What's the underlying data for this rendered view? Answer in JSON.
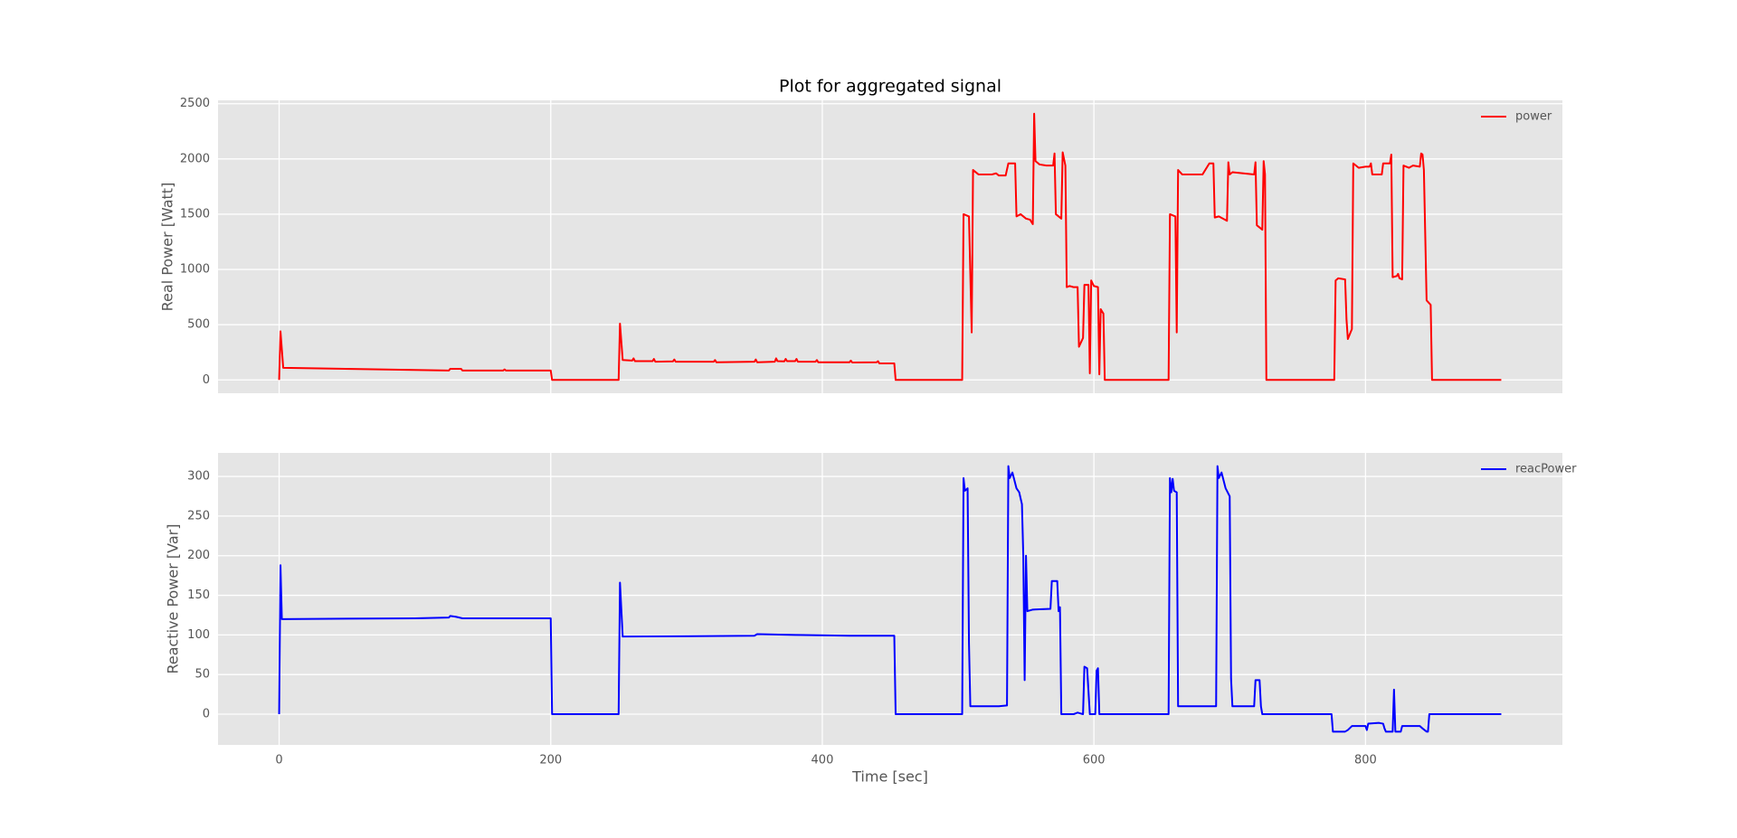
{
  "chart_data": [
    {
      "type": "line",
      "title": "Plot for aggregated signal",
      "y_label": "Real Power [Watt]",
      "x": [
        0,
        1,
        3,
        125,
        126,
        134,
        135,
        165,
        166,
        167,
        200,
        201,
        250,
        251,
        253,
        260,
        261,
        262,
        275,
        276,
        277,
        290,
        291,
        292,
        320,
        321,
        322,
        350,
        351,
        352,
        365,
        366,
        367,
        372,
        373,
        374,
        380,
        381,
        382,
        395,
        396,
        397,
        420,
        421,
        422,
        440,
        441,
        442,
        453,
        454,
        503,
        504,
        508,
        510,
        511,
        515,
        525,
        528,
        530,
        535,
        537,
        542,
        543,
        546,
        550,
        553,
        555,
        556,
        557,
        560,
        565,
        570,
        571,
        572,
        576,
        577,
        579,
        580,
        582,
        585,
        588,
        589,
        592,
        593,
        596,
        597,
        598,
        600,
        603,
        604,
        605,
        607,
        608,
        655,
        656,
        660,
        661,
        662,
        665,
        680,
        685,
        688,
        689,
        692,
        698,
        699,
        700,
        702,
        718,
        719,
        720,
        724,
        725,
        726,
        727,
        777,
        778,
        780,
        785,
        786,
        787,
        790,
        791,
        795,
        800,
        803,
        804,
        805,
        812,
        813,
        818,
        819,
        820,
        823,
        824,
        825,
        827,
        828,
        832,
        835,
        840,
        841,
        842,
        843,
        845,
        848,
        849,
        900
      ],
      "series": [
        {
          "name": "power",
          "color": "#ff0000",
          "values": [
            0,
            440,
            110,
            85,
            100,
            100,
            85,
            85,
            95,
            85,
            85,
            0,
            0,
            510,
            180,
            175,
            195,
            170,
            170,
            190,
            165,
            168,
            185,
            165,
            165,
            180,
            160,
            165,
            185,
            160,
            165,
            195,
            170,
            168,
            190,
            170,
            170,
            190,
            165,
            165,
            180,
            160,
            160,
            175,
            158,
            160,
            170,
            150,
            150,
            0,
            0,
            1500,
            1480,
            430,
            1900,
            1860,
            1860,
            1870,
            1850,
            1850,
            1960,
            1960,
            1480,
            1500,
            1460,
            1450,
            1410,
            2410,
            1980,
            1950,
            1940,
            1940,
            2050,
            1500,
            1460,
            2060,
            1940,
            840,
            850,
            840,
            840,
            300,
            380,
            860,
            860,
            60,
            900,
            850,
            840,
            50,
            640,
            600,
            0,
            0,
            1500,
            1480,
            430,
            1900,
            1860,
            1860,
            1960,
            1960,
            1470,
            1480,
            1440,
            1970,
            1860,
            1880,
            1860,
            1970,
            1400,
            1360,
            1980,
            1860,
            0,
            0,
            900,
            920,
            910,
            550,
            370,
            460,
            1960,
            1920,
            1930,
            1930,
            1960,
            1860,
            1860,
            1960,
            1960,
            2040,
            930,
            940,
            960,
            920,
            910,
            1940,
            1920,
            1940,
            1930,
            2050,
            2040,
            1900,
            720,
            680,
            0,
            0
          ]
        }
      ],
      "xlim": [
        -45,
        945
      ],
      "ylim": [
        -120.5,
        2530.5
      ],
      "xticks": [
        0,
        200,
        400,
        600,
        800
      ],
      "yticks": [
        0,
        500,
        1000,
        1500,
        2000,
        2500
      ],
      "grid": true,
      "legend": "upper right"
    },
    {
      "type": "line",
      "x_label": "Time [sec]",
      "y_label": "Reactive Power [Var]",
      "x": [
        0,
        1,
        2,
        100,
        125,
        126,
        130,
        135,
        200,
        201,
        250,
        251,
        253,
        350,
        352,
        380,
        420,
        453,
        454,
        503,
        504,
        505,
        507,
        508,
        509,
        530,
        536,
        537,
        538,
        540,
        543,
        545,
        547,
        548,
        549,
        550,
        551,
        555,
        568,
        569,
        573,
        574,
        575,
        576,
        585,
        588,
        592,
        593,
        595,
        597,
        601,
        602,
        603,
        604,
        655,
        656,
        657,
        658,
        659,
        661,
        662,
        685,
        690,
        691,
        692,
        694,
        697,
        700,
        701,
        702,
        718,
        719,
        722,
        723,
        724,
        775,
        776,
        785,
        787,
        790,
        800,
        801,
        802,
        810,
        813,
        814,
        815,
        820,
        821,
        822,
        826,
        827,
        840,
        842,
        845,
        846,
        847,
        900
      ],
      "series": [
        {
          "name": "reacPower",
          "color": "#0000ff",
          "values": [
            0,
            188,
            120,
            121,
            122,
            124,
            123,
            121,
            121,
            0,
            0,
            166,
            98,
            99,
            101,
            100,
            99,
            99,
            0,
            0,
            298,
            282,
            285,
            90,
            10,
            10,
            11,
            313,
            298,
            305,
            285,
            280,
            265,
            200,
            43,
            200,
            130,
            132,
            133,
            168,
            168,
            130,
            135,
            0,
            0,
            2,
            0,
            60,
            58,
            0,
            0,
            55,
            58,
            0,
            0,
            298,
            280,
            297,
            282,
            280,
            10,
            10,
            10,
            313,
            298,
            305,
            285,
            275,
            45,
            10,
            10,
            43,
            43,
            10,
            0,
            0,
            -22,
            -22,
            -20,
            -15,
            -15,
            -20,
            -12,
            -11,
            -12,
            -18,
            -22,
            -22,
            31,
            -22,
            -22,
            -15,
            -15,
            -18,
            -22,
            -22,
            0,
            0
          ]
        }
      ],
      "xlim": [
        -45,
        945
      ],
      "ylim": [
        -38.75,
        329.75
      ],
      "xticks": [
        0,
        200,
        400,
        600,
        800
      ],
      "yticks": [
        0,
        50,
        100,
        150,
        200,
        250,
        300
      ],
      "grid": true,
      "legend": "upper right"
    }
  ]
}
